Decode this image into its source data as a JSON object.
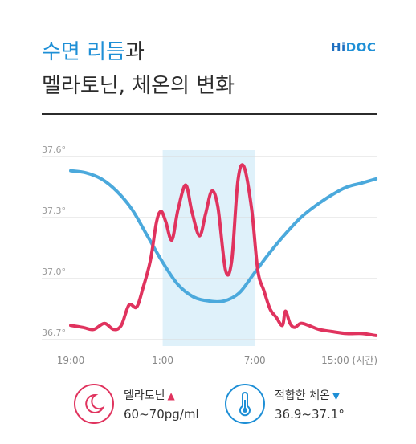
{
  "title": {
    "line1_accent": "수면 리듬",
    "line1_rest": "과",
    "line2": "멜라토닌, 체온의 변화"
  },
  "logo": {
    "h": "Hi",
    "doc": "DOC"
  },
  "legend": {
    "melatonin": {
      "name": "멜라토닌",
      "arrow": "▲",
      "range": "60~70pg/ml",
      "icon": "moon-icon",
      "color": "#e0335e"
    },
    "temperature": {
      "name": "적합한 체온",
      "arrow": "▼",
      "range": "36.9~37.1°",
      "icon": "thermometer-icon",
      "color": "#1e8fd6"
    }
  },
  "chart_data": {
    "type": "line",
    "x_tick_labels": [
      "19:00",
      "1:00",
      "7:00",
      "15:00 (시간)"
    ],
    "x_ticks": [
      19,
      25,
      31,
      39
    ],
    "xlim": [
      19,
      39
    ],
    "y_tick_labels": [
      "37.6°",
      "37.3°",
      "37.0°",
      "36.7°"
    ],
    "y_ticks": [
      37.6,
      37.3,
      37.0,
      36.7
    ],
    "ylim": [
      36.7,
      37.6
    ],
    "grid": true,
    "highlight_band": {
      "from": 25,
      "to": 31,
      "color": "#dff1fa"
    },
    "series": [
      {
        "color": "#4ba9dc",
        "x": [
          19,
          20,
          21,
          22,
          23,
          24,
          25,
          26,
          27,
          28,
          29,
          30,
          31,
          32,
          33,
          34,
          35,
          36,
          37,
          38,
          38.9
        ],
        "y": [
          37.53,
          37.52,
          37.49,
          37.43,
          37.34,
          37.21,
          37.08,
          36.97,
          36.91,
          36.89,
          36.89,
          36.93,
          37.03,
          37.13,
          37.22,
          37.3,
          37.36,
          37.41,
          37.45,
          37.47,
          37.49
        ]
      },
      {
        "color": "#e0335e",
        "x": [
          19,
          19.8,
          20.5,
          21.2,
          21.8,
          22.3,
          22.8,
          23.3,
          23.7,
          24.2,
          24.6,
          24.9,
          25.2,
          25.6,
          26.0,
          26.5,
          26.9,
          27.4,
          27.8,
          28.2,
          28.6,
          29.1,
          29.5,
          29.9,
          30.3,
          30.8,
          31.2,
          31.6,
          32.0,
          32.4,
          32.8,
          33.0,
          33.3,
          33.6,
          34.0,
          34.5,
          35.2,
          36.0,
          37.0,
          38.0,
          38.9
        ],
        "y": [
          36.77,
          36.76,
          36.75,
          36.78,
          36.75,
          36.77,
          36.87,
          36.86,
          36.95,
          37.09,
          37.28,
          37.33,
          37.28,
          37.19,
          37.34,
          37.46,
          37.33,
          37.21,
          37.32,
          37.43,
          37.35,
          37.04,
          37.09,
          37.48,
          37.55,
          37.34,
          37.04,
          36.94,
          36.85,
          36.81,
          36.77,
          36.84,
          36.78,
          36.76,
          36.78,
          36.77,
          36.75,
          36.74,
          36.73,
          36.73,
          36.72
        ]
      }
    ]
  }
}
